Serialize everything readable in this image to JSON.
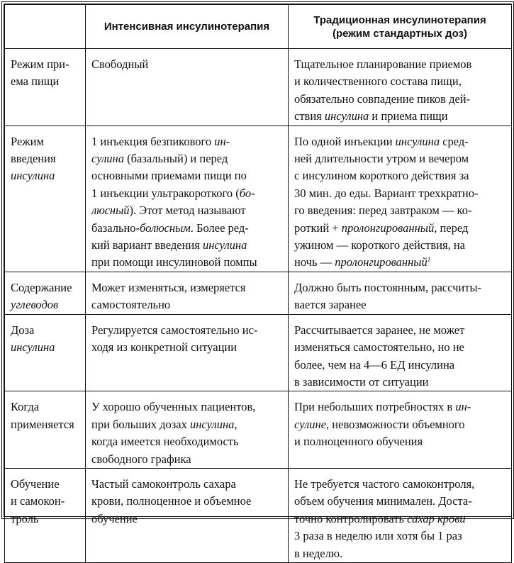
{
  "header": {
    "col0": "",
    "col1": [
      "Интенсивная инсулинотерапия"
    ],
    "col2": [
      "Традиционная инсулинотерапия",
      "(режим стандартных доз)"
    ]
  },
  "rows": [
    {
      "cells": [
        [
          [
            "Режим при-"
          ],
          [
            "ема пищи"
          ]
        ],
        [
          [
            "Свободный"
          ]
        ],
        [
          [
            "Тщательное планирование приемов"
          ],
          [
            "и количественного состава пищи,"
          ],
          [
            "обязательно совпадение пиков дей-"
          ],
          [
            "ствия ",
            {
              "t": "инсулина",
              "i": 1
            },
            " и приема пищи"
          ]
        ]
      ]
    },
    {
      "cells": [
        [
          [
            "Режим"
          ],
          [
            "введения"
          ],
          [
            {
              "t": "инсулина",
              "i": 1
            }
          ]
        ],
        [
          [
            "1 инъекция безпикового ",
            {
              "t": "ин-",
              "i": 1
            }
          ],
          [
            {
              "t": "сулина",
              "i": 1
            },
            " (базальный) и перед"
          ],
          [
            "основными приемами пищи по"
          ],
          [
            "1 инъекции ультракороткого (",
            {
              "t": "бо-",
              "i": 1
            }
          ],
          [
            {
              "t": "люсный",
              "i": 1
            },
            "). Этот метод называют"
          ],
          [
            "базально-",
            {
              "t": "болюсным",
              "i": 1
            },
            ". Более ред-"
          ],
          [
            "кий вариант введения ",
            {
              "t": "инсулина",
              "i": 1
            }
          ],
          [
            "при помощи инсулиновой помпы"
          ]
        ],
        [
          [
            "По одной инъекции ",
            {
              "t": "инсулина",
              "i": 1
            },
            " сред-"
          ],
          [
            "ней длительности утром и вечером"
          ],
          [
            "с инсулином короткого действия за"
          ],
          [
            "30 мин. до еды. Вариант трехкратно-"
          ],
          [
            "го введения: перед завтраком — ко-"
          ],
          [
            "роткий + ",
            {
              "t": "пролонгированный",
              "i": 1
            },
            ", перед"
          ],
          [
            "ужином — короткого действия, на"
          ],
          [
            "ночь — ",
            {
              "t": "пролонгированный",
              "i": 1
            },
            {
              "t": "1",
              "sup": 1
            }
          ]
        ]
      ]
    },
    {
      "cells": [
        [
          [
            "Содержание"
          ],
          [
            {
              "t": "углеводов",
              "i": 1
            }
          ]
        ],
        [
          [
            "Может изменяться, измеряется"
          ],
          [
            "самостоятельно"
          ]
        ],
        [
          [
            "Должно быть постоянным, рассчиты-"
          ],
          [
            "вается заранее"
          ]
        ]
      ]
    },
    {
      "cells": [
        [
          [
            "Доза"
          ],
          [
            {
              "t": "инсулина",
              "i": 1
            }
          ]
        ],
        [
          [
            "Регулируется самостоятельно ис-"
          ],
          [
            "ходя из конкретной ситуации"
          ]
        ],
        [
          [
            "Рассчитывается заранее, не может"
          ],
          [
            "изменяться самостоятельно, но не"
          ],
          [
            "более, чем на 4—6 ЕД инсулина"
          ],
          [
            "в зависимости от ситуации"
          ]
        ]
      ]
    },
    {
      "cells": [
        [
          [
            "Когда"
          ],
          [
            "применяется"
          ]
        ],
        [
          [
            "У хорошо обученных пациентов,"
          ],
          [
            "при больших дозах ",
            {
              "t": "инсулина",
              "i": 1
            },
            ","
          ],
          [
            "когда имеется необходимость"
          ],
          [
            "свободного графика"
          ]
        ],
        [
          [
            "При небольших потребностях в ",
            {
              "t": "ин-",
              "i": 1
            }
          ],
          [
            {
              "t": "сулине",
              "i": 1
            },
            ", невозможности объемного"
          ],
          [
            "и полноценного обучения"
          ]
        ]
      ]
    },
    {
      "cells": [
        [
          [
            "Обучение"
          ],
          [
            "и самокон-"
          ],
          [
            "троль"
          ]
        ],
        [
          [
            "Частый самоконтроль сахара"
          ],
          [
            "крови, полноценное и объемное"
          ],
          [
            "обучение"
          ]
        ],
        [
          [
            "Не требуется частого самоконтроля,"
          ],
          [
            "объем обучения минимален. Доста-"
          ],
          [
            "точно контролировать ",
            {
              "t": "сахар крови",
              "i": 1
            }
          ],
          [
            "3 раза в неделю или хотя бы 1 раз"
          ],
          [
            "в неделю."
          ]
        ]
      ]
    }
  ]
}
